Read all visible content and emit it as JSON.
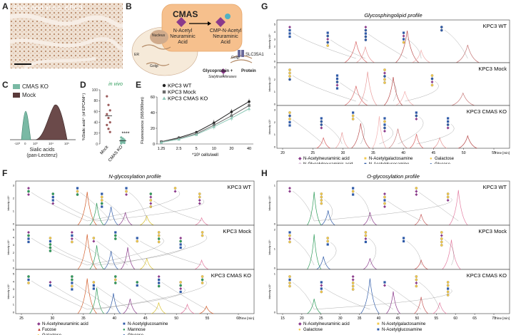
{
  "panels": {
    "A": {
      "letter": "A",
      "title": "Sialic acid in s.c. KPC3"
    },
    "B": {
      "letter": "B",
      "enzyme": "CMAS",
      "substrate": [
        "N-Acetyl",
        "Neuraminic",
        "Acid"
      ],
      "product": [
        "CMP-N-Acetyl",
        "Neuraminic",
        "Acid"
      ],
      "labels": {
        "nucleus": "Nucleus",
        "er": "ER",
        "golgi": "Golgi",
        "golgi2": "Golgi",
        "transporter": "SLC35A1",
        "glycoprotein": "Glycoprotein +",
        "protein": "Protein",
        "sialyltransferases": "Sialyltransferases"
      }
    },
    "C": {
      "letter": "C",
      "legend": [
        "CMAS KO",
        "Mock"
      ],
      "xlabel": [
        "Sialic acids",
        "(pan-Lectenz)"
      ],
      "ticks": [
        "-10³",
        "0",
        "10³",
        "10⁴",
        "10⁵"
      ],
      "colors": {
        "ko": "#79b9a4",
        "mock": "#5a3a3a"
      }
    },
    "E": {
      "letter": "E"
    },
    "F": {
      "letter": "F",
      "title": "N-glycosylation profile",
      "ylabel": "Intensity x10⁶",
      "tracks": [
        {
          "name": "KPC3 WT",
          "ymax": 3
        },
        {
          "name": "KPC3 Mock",
          "ymax": 5
        },
        {
          "name": "KPC3 CMAS KO",
          "ymax": 5
        }
      ],
      "xticks": [
        "25",
        "30",
        "35",
        "40",
        "45",
        "50",
        "55",
        "60"
      ],
      "xunit": "Time [min]",
      "legend": [
        {
          "symbol": "◆",
          "color": "#8b3a8b",
          "label": "N-Acetylneuraminic acid"
        },
        {
          "symbol": "■",
          "color": "#2e5aa8",
          "label": "N-Acetylglucosamine"
        },
        {
          "symbol": "▲",
          "color": "#c0392b",
          "label": "Fucose"
        },
        {
          "symbol": "●",
          "color": "#2e9c5a",
          "label": "Mannose"
        },
        {
          "symbol": "●",
          "color": "#f2c94c",
          "label": "Galactose"
        },
        {
          "symbol": "●",
          "color": "#2e5aa8",
          "label": "Glucose"
        }
      ]
    },
    "G": {
      "letter": "G",
      "title": "Glycosphingolipid profile",
      "ylabel": "Intensity x10⁶",
      "tracks": [
        {
          "name": "KPC3 WT",
          "ymax": 5
        },
        {
          "name": "KPC3 Mock",
          "ymax": 3
        },
        {
          "name": "KPC3 CMAS KO",
          "ymax": 3
        }
      ],
      "xticks": [
        "20",
        "25",
        "30",
        "35",
        "40",
        "45",
        "50",
        "55"
      ],
      "xunit": "Time [min]",
      "legend": [
        {
          "symbol": "◆",
          "color": "#8b3a8b",
          "label": "N-Acetylneuraminic acid"
        },
        {
          "symbol": "■",
          "color": "#f2c94c",
          "label": "N-Acetylgalactosamine"
        },
        {
          "symbol": "●",
          "color": "#f2c94c",
          "label": "Galactose"
        },
        {
          "symbol": "◇",
          "color": "#8b3a8b",
          "label": "N-Glycolylneuraminic acid"
        },
        {
          "symbol": "■",
          "color": "#2e5aa8",
          "label": "N-Acetylglucosamine"
        },
        {
          "symbol": "●",
          "color": "#2e5aa8",
          "label": "Glucose"
        }
      ]
    },
    "H": {
      "letter": "H",
      "title": "O-glycosylation profile",
      "ylabel": "Intensity x10⁶",
      "tracks": [
        {
          "name": "KPC3 WT",
          "ymax": 1
        },
        {
          "name": "KPC3 Mock",
          "ymax": 2
        },
        {
          "name": "KPC3 CMAS KO",
          "ymax": 1
        }
      ],
      "xticks": [
        "15",
        "20",
        "25",
        "30",
        "35",
        "40",
        "45",
        "50",
        "55",
        "60",
        "65",
        "70"
      ],
      "xunit": "Time [min]",
      "legend": [
        {
          "symbol": "◆",
          "color": "#8b3a8b",
          "label": "N-Acetylneuraminic acid"
        },
        {
          "symbol": "■",
          "color": "#f2c94c",
          "label": "N-Acetylgalactosamine"
        },
        {
          "symbol": "●",
          "color": "#f2c94c",
          "label": "Galactose"
        },
        {
          "symbol": "■",
          "color": "#2e5aa8",
          "label": "N-Acetylglucosamine"
        }
      ]
    }
  },
  "chart_data": [
    {
      "panel": "D",
      "type": "scatter",
      "title": "in vivo",
      "ylabel": "%Sialic acid⁺ (of EPCAM⁺)",
      "categories": [
        "Mock",
        "CMAS KO"
      ],
      "ylim": [
        0,
        100
      ],
      "yticks": [
        "0",
        "20",
        "40",
        "60",
        "80",
        "100"
      ],
      "series": [
        {
          "name": "Mock",
          "values": [
            88,
            72,
            62,
            55,
            48,
            40,
            35,
            28,
            22
          ],
          "mean": 52,
          "color": "#9b5b5b"
        },
        {
          "name": "CMAS KO",
          "values": [
            12,
            10,
            8,
            7,
            6,
            5,
            4,
            3,
            2,
            1
          ],
          "mean": 6,
          "color": "#79b9a4"
        }
      ],
      "annotation": "****"
    },
    {
      "panel": "E",
      "type": "line",
      "ylabel": "Fluorescence (565/590nm)",
      "xlabel": "*10³ cells/well",
      "categories": [
        "1.25",
        "2.5",
        "5",
        "10",
        "20",
        "40"
      ],
      "ylim": [
        0,
        60
      ],
      "yticks": [
        "0",
        "20",
        "40",
        "60"
      ],
      "series": [
        {
          "name": "KPC3 WT",
          "values": [
            3,
            8,
            15,
            27,
            41,
            54
          ],
          "color": "#222222",
          "marker": "circle"
        },
        {
          "name": "KPC3 Mock",
          "values": [
            3,
            7,
            13,
            24,
            36,
            49
          ],
          "color": "#6a6a6a",
          "marker": "square"
        },
        {
          "name": "KPC3 CMAS KO",
          "values": [
            2,
            6,
            12,
            22,
            33,
            45
          ],
          "color": "#8fc9b8",
          "marker": "triangle"
        }
      ]
    }
  ]
}
